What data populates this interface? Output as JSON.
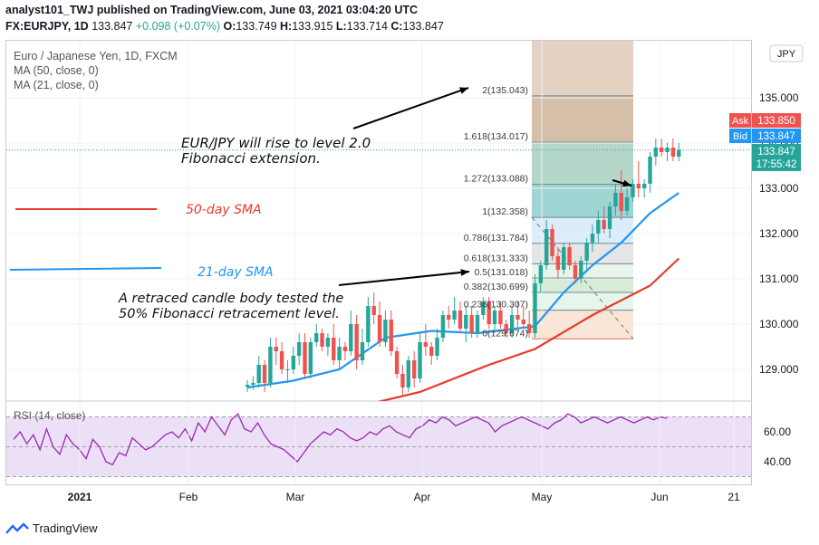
{
  "header": {
    "line1": "analyst101_TWJ published on TradingView.com, June 03, 2021 03:04:20 UTC",
    "symbol": "FX:EURJPY, 1D",
    "price": "133.847",
    "change": "+0.098 (+0.07%)",
    "o_label": "O:",
    "o": "133.749",
    "h_label": "H:",
    "h": "133.915",
    "l_label": "L:",
    "l": "133.714",
    "c_label": "C:",
    "c": "133.847"
  },
  "legend": {
    "title": "Euro / Japanese Yen, 1D, FXCM",
    "ma50": "MA (50, close, 0)",
    "ma21": "MA (21, close, 0)"
  },
  "price_scale": {
    "currency": "JPY",
    "ask_label": "Ask",
    "ask": "133.850",
    "bid_label": "Bid",
    "bid": "133.847",
    "last": "133.847",
    "countdown": "17:55:42"
  },
  "annotations": {
    "fib_extension_line1": "EUR/JPY will rise to level 2.0",
    "fib_extension_line2": "Fibonacci extension.",
    "sma50": "50-day SMA",
    "sma21": "21-day SMA",
    "retrace_line1": "A retraced candle body tested the",
    "retrace_line2": "50% Fibonacci retracement level."
  },
  "rsi": {
    "label": "RSI (14, close)",
    "ticks": [
      "60.00",
      "40.00"
    ]
  },
  "footer": {
    "brand": "TradingView"
  },
  "colors": {
    "up": "#26a69a",
    "down": "#ef5350",
    "ma50": "#e8392a",
    "ma21": "#2196f3",
    "rsi_line": "#9c27b0",
    "rsi_band": "#ece0f7",
    "ask_bg": "#ef5350",
    "bid_bg": "#2196f3",
    "last_bg": "#26a69a"
  },
  "chart_data": {
    "type": "candlestick",
    "symbol": "FX:EURJPY",
    "interval": "1D",
    "price_axis": {
      "ticks": [
        129,
        130,
        131,
        132,
        133,
        134,
        135
      ],
      "tick_labels": [
        "129.000",
        "130.000",
        "131.000",
        "132.000",
        "133.000",
        "134.000",
        "135.000"
      ],
      "range": [
        128.35,
        136.0
      ]
    },
    "time_axis": {
      "labels": [
        "2021",
        "Feb",
        "Mar",
        "Apr",
        "May",
        "Jun",
        "21"
      ]
    },
    "fibonacci": [
      {
        "label": "2(135.043)",
        "level": 2,
        "price": 135.043
      },
      {
        "label": "1.618(134.017)",
        "level": 1.618,
        "price": 134.017
      },
      {
        "label": "1.272(133.088)",
        "level": 1.272,
        "price": 133.088
      },
      {
        "label": "1(132.358)",
        "level": 1,
        "price": 132.358
      },
      {
        "label": "0.786(131.784)",
        "level": 0.786,
        "price": 131.784
      },
      {
        "label": "0.618(131.333)",
        "level": 0.618,
        "price": 131.333
      },
      {
        "label": "0.5(131.018)",
        "level": 0.5,
        "price": 131.018
      },
      {
        "label": "0.382(130.699)",
        "level": 0.382,
        "price": 130.699
      },
      {
        "label": "0.236(130.307)",
        "level": 0.236,
        "price": 130.307
      },
      {
        "label": "0(129.674)",
        "level": 0,
        "price": 129.674
      }
    ],
    "candles": [
      [
        128.62,
        128.77,
        128.5,
        128.66
      ],
      [
        128.66,
        128.85,
        128.55,
        128.7
      ],
      [
        128.7,
        129.3,
        128.6,
        129.1
      ],
      [
        129.1,
        129.2,
        128.5,
        128.7
      ],
      [
        128.7,
        129.7,
        128.6,
        129.5
      ],
      [
        129.5,
        129.7,
        129.1,
        129.4
      ],
      [
        129.4,
        129.6,
        128.9,
        129.0
      ],
      [
        129.0,
        129.2,
        128.7,
        129.0
      ],
      [
        129.0,
        129.5,
        128.9,
        129.3
      ],
      [
        129.3,
        129.8,
        129.1,
        129.6
      ],
      [
        129.6,
        129.8,
        128.8,
        128.9
      ],
      [
        128.9,
        129.7,
        128.8,
        129.6
      ],
      [
        129.6,
        130.0,
        129.5,
        129.8
      ],
      [
        129.8,
        129.9,
        129.4,
        129.5
      ],
      [
        129.5,
        129.8,
        129.3,
        129.7
      ],
      [
        129.7,
        130.0,
        129.1,
        129.2
      ],
      [
        129.2,
        129.7,
        129.0,
        129.5
      ],
      [
        129.5,
        129.6,
        129.2,
        129.4
      ],
      [
        129.4,
        130.3,
        129.3,
        130.0
      ],
      [
        130.0,
        130.2,
        129.0,
        129.2
      ],
      [
        129.2,
        129.9,
        129.1,
        129.6
      ],
      [
        129.6,
        130.6,
        129.5,
        130.4
      ],
      [
        130.4,
        130.7,
        130.0,
        130.2
      ],
      [
        130.2,
        130.5,
        129.5,
        129.6
      ],
      [
        129.6,
        130.3,
        129.5,
        130.1
      ],
      [
        130.1,
        130.3,
        129.3,
        129.4
      ],
      [
        129.4,
        129.5,
        128.8,
        128.9
      ],
      [
        128.9,
        129.1,
        128.4,
        128.6
      ],
      [
        128.6,
        129.3,
        128.5,
        129.2
      ],
      [
        129.2,
        129.4,
        128.6,
        128.8
      ],
      [
        128.8,
        129.8,
        128.7,
        129.6
      ],
      [
        129.6,
        130.0,
        129.3,
        129.5
      ],
      [
        129.5,
        129.6,
        129.1,
        129.3
      ],
      [
        129.3,
        129.9,
        129.2,
        129.7
      ],
      [
        129.7,
        130.3,
        129.6,
        130.2
      ],
      [
        130.2,
        130.4,
        129.9,
        130.1
      ],
      [
        130.1,
        130.6,
        130.0,
        130.3
      ],
      [
        130.3,
        130.5,
        129.8,
        129.9
      ],
      [
        129.9,
        130.4,
        129.6,
        130.2
      ],
      [
        130.2,
        130.4,
        129.7,
        129.8
      ],
      [
        129.8,
        130.3,
        129.7,
        130.2
      ],
      [
        130.2,
        130.6,
        130.1,
        130.5
      ],
      [
        130.5,
        130.6,
        129.9,
        130.0
      ],
      [
        130.0,
        130.4,
        129.8,
        130.3
      ],
      [
        130.3,
        130.5,
        129.9,
        130.0
      ],
      [
        130.0,
        130.1,
        129.7,
        129.8
      ],
      [
        129.8,
        130.4,
        129.7,
        130.2
      ],
      [
        130.2,
        130.5,
        129.9,
        130.1
      ],
      [
        130.1,
        130.4,
        129.9,
        130.0
      ],
      [
        130.0,
        130.3,
        129.7,
        129.8
      ],
      [
        129.8,
        131.1,
        129.7,
        130.9
      ],
      [
        130.9,
        131.4,
        130.7,
        131.3
      ],
      [
        131.3,
        132.3,
        131.2,
        132.1
      ],
      [
        132.1,
        132.2,
        131.4,
        131.5
      ],
      [
        131.5,
        131.7,
        131.0,
        131.2
      ],
      [
        131.2,
        131.8,
        131.1,
        131.7
      ],
      [
        131.7,
        131.8,
        131.2,
        131.3
      ],
      [
        131.3,
        131.4,
        130.9,
        131.0
      ],
      [
        131.0,
        131.5,
        130.9,
        131.4
      ],
      [
        131.4,
        131.9,
        131.2,
        131.8
      ],
      [
        131.8,
        132.2,
        131.6,
        132.0
      ],
      [
        132.0,
        132.5,
        131.8,
        132.3
      ],
      [
        132.3,
        132.6,
        132.0,
        132.1
      ],
      [
        132.1,
        132.7,
        131.9,
        132.6
      ],
      [
        132.6,
        133.1,
        132.4,
        132.9
      ],
      [
        132.9,
        133.4,
        132.3,
        132.5
      ],
      [
        132.5,
        133.0,
        132.4,
        132.8
      ],
      [
        132.8,
        133.2,
        132.7,
        133.1
      ],
      [
        133.1,
        133.6,
        132.8,
        133.0
      ],
      [
        133.0,
        133.2,
        132.8,
        133.1
      ],
      [
        133.1,
        133.8,
        132.9,
        133.7
      ],
      [
        133.7,
        134.1,
        133.5,
        133.9
      ],
      [
        133.9,
        134.1,
        133.7,
        133.8
      ],
      [
        133.8,
        134.0,
        133.6,
        133.9
      ],
      [
        133.9,
        134.1,
        133.6,
        133.7
      ],
      [
        133.7,
        134.0,
        133.6,
        133.85
      ]
    ],
    "ma50": [
      [
        0,
        127.9
      ],
      [
        15,
        128.05
      ],
      [
        30,
        128.5
      ],
      [
        42,
        129.1
      ],
      [
        50,
        129.45
      ],
      [
        60,
        130.2
      ],
      [
        70,
        130.85
      ],
      [
        75,
        131.45
      ]
    ],
    "ma21": [
      [
        0,
        128.6
      ],
      [
        8,
        128.75
      ],
      [
        16,
        129.0
      ],
      [
        24,
        129.7
      ],
      [
        32,
        129.85
      ],
      [
        40,
        129.8
      ],
      [
        50,
        129.95
      ],
      [
        55,
        130.7
      ],
      [
        60,
        131.3
      ],
      [
        65,
        131.8
      ],
      [
        70,
        132.45
      ],
      [
        75,
        132.9
      ]
    ],
    "rsi_axis": {
      "ticks": [
        60,
        40
      ],
      "range": [
        30,
        80
      ],
      "band": [
        30,
        70
      ]
    }
  }
}
